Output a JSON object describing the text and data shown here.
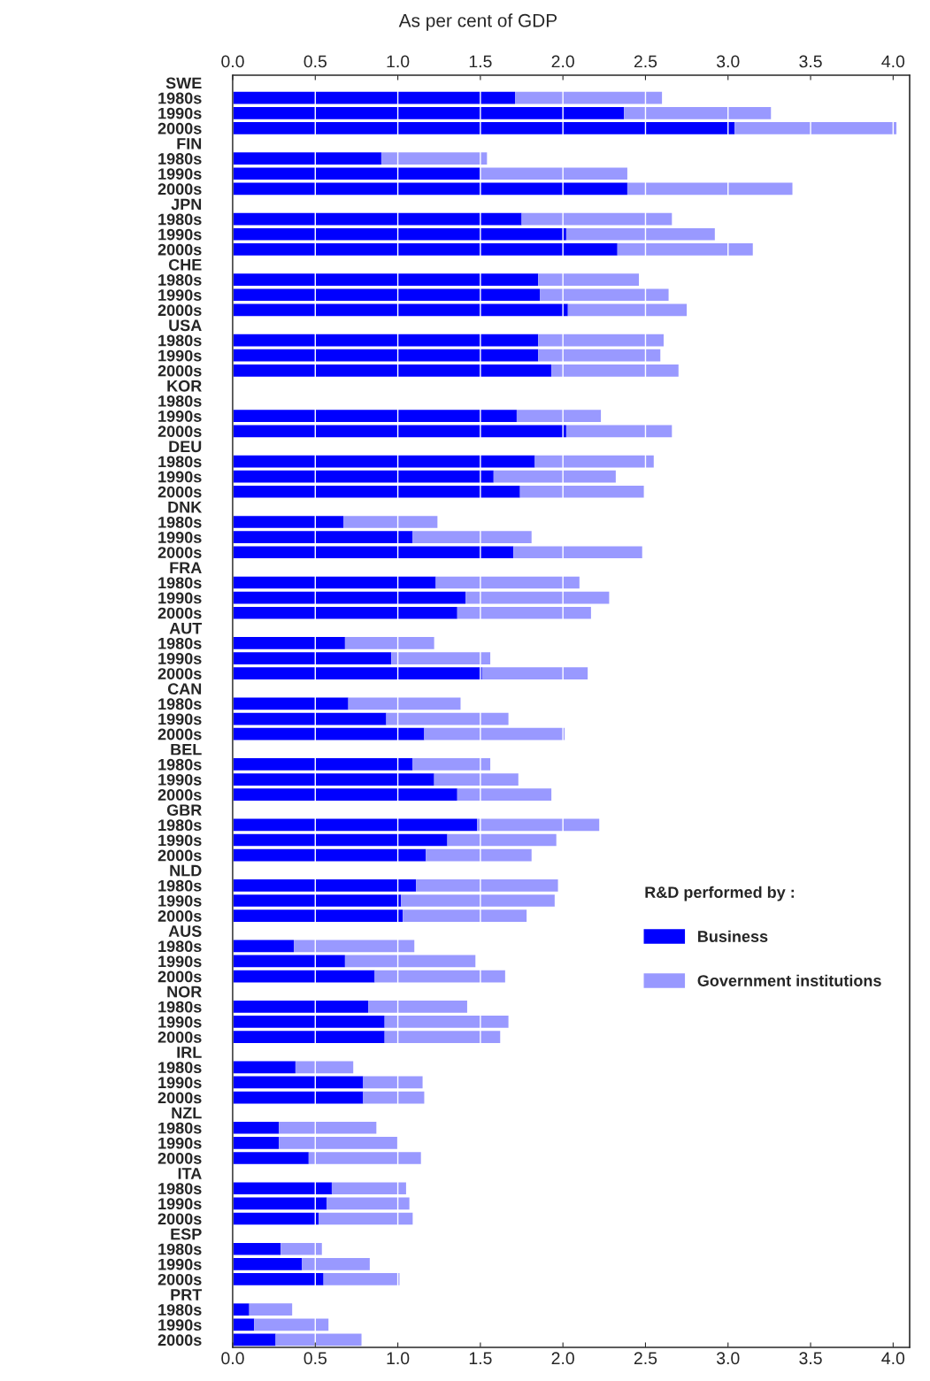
{
  "chart_data": {
    "type": "bar",
    "orientation": "horizontal",
    "stacked": true,
    "title": "As per cent of GDP",
    "categories": [
      "SWE",
      "1980s",
      "1990s",
      "2000s",
      "FIN",
      "1980s",
      "1990s",
      "2000s",
      "JPN",
      "1980s",
      "1990s",
      "2000s",
      "CHE",
      "1980s",
      "1990s",
      "2000s",
      "USA",
      "1980s",
      "1990s",
      "2000s",
      "KOR",
      "1980s",
      "1990s",
      "2000s",
      "DEU",
      "1980s",
      "1990s",
      "2000s",
      "DNK",
      "1980s",
      "1990s",
      "2000s",
      "FRA",
      "1980s",
      "1990s",
      "2000s",
      "AUT",
      "1980s",
      "1990s",
      "2000s",
      "CAN",
      "1980s",
      "1990s",
      "2000s",
      "BEL",
      "1980s",
      "1990s",
      "2000s",
      "GBR",
      "1980s",
      "1990s",
      "2000s",
      "NLD",
      "1980s",
      "1990s",
      "2000s",
      "AUS",
      "1980s",
      "1990s",
      "2000s",
      "NOR",
      "1980s",
      "1990s",
      "2000s",
      "IRL",
      "1980s",
      "1990s",
      "2000s",
      "NZL",
      "1980s",
      "1990s",
      "2000s",
      "ITA",
      "1980s",
      "1990s",
      "2000s",
      "ESP",
      "1980s",
      "1990s",
      "2000s",
      "PRT",
      "1980s",
      "1990s",
      "2000s"
    ],
    "series": [
      {
        "name": "Business",
        "color": "#0000ff",
        "values": [
          null,
          1.71,
          2.37,
          3.04,
          null,
          0.9,
          1.5,
          2.39,
          null,
          1.75,
          2.02,
          2.33,
          null,
          1.85,
          1.86,
          2.03,
          null,
          1.85,
          1.85,
          1.93,
          null,
          null,
          1.72,
          2.02,
          null,
          1.83,
          1.58,
          1.74,
          null,
          0.67,
          1.09,
          1.7,
          null,
          1.23,
          1.41,
          1.36,
          null,
          0.68,
          0.96,
          1.51,
          null,
          0.7,
          0.93,
          1.16,
          null,
          1.09,
          1.22,
          1.36,
          null,
          1.48,
          1.3,
          1.17,
          null,
          1.11,
          1.02,
          1.03,
          null,
          0.37,
          0.68,
          0.86,
          null,
          0.82,
          0.92,
          0.92,
          null,
          0.38,
          0.79,
          0.79,
          null,
          0.28,
          0.28,
          0.46,
          null,
          0.6,
          0.57,
          0.52,
          null,
          0.29,
          0.42,
          0.55,
          null,
          0.1,
          0.13,
          0.26
        ]
      },
      {
        "name": "Government institutions",
        "color": "#9999ff",
        "values": [
          null,
          0.89,
          0.89,
          0.98,
          null,
          0.64,
          0.89,
          1.0,
          null,
          0.91,
          0.9,
          0.82,
          null,
          0.61,
          0.78,
          0.72,
          null,
          0.76,
          0.74,
          0.77,
          null,
          null,
          0.51,
          0.64,
          null,
          0.72,
          0.74,
          0.75,
          null,
          0.57,
          0.72,
          0.78,
          null,
          0.87,
          0.87,
          0.81,
          null,
          0.54,
          0.6,
          0.64,
          null,
          0.68,
          0.74,
          0.85,
          null,
          0.47,
          0.51,
          0.57,
          null,
          0.74,
          0.66,
          0.64,
          null,
          0.86,
          0.93,
          0.75,
          null,
          0.73,
          0.79,
          0.79,
          null,
          0.6,
          0.75,
          0.7,
          null,
          0.35,
          0.36,
          0.37,
          null,
          0.59,
          0.72,
          0.68,
          null,
          0.45,
          0.5,
          0.57,
          null,
          0.25,
          0.41,
          0.46,
          null,
          0.26,
          0.45,
          0.52
        ]
      }
    ],
    "xlim": [
      0,
      4.1
    ],
    "xticks": [
      {
        "value": 0,
        "label": "0.0"
      },
      {
        "value": 0.5,
        "label": "0.5"
      },
      {
        "value": 1,
        "label": "1.0"
      },
      {
        "value": 1.5,
        "label": "1.5"
      },
      {
        "value": 2,
        "label": "2.0"
      },
      {
        "value": 2.5,
        "label": "2.5"
      },
      {
        "value": 3,
        "label": "3.0"
      },
      {
        "value": 3.5,
        "label": "3.5"
      },
      {
        "value": 4,
        "label": "4.0"
      }
    ],
    "x2lim": [
      0,
      4.1
    ],
    "x2ticks": [
      {
        "value": 0,
        "label": "0.0"
      },
      {
        "value": 0.5,
        "label": "0.5"
      },
      {
        "value": 1,
        "label": "1.0"
      },
      {
        "value": 1.5,
        "label": "1.5"
      },
      {
        "value": 2,
        "label": "2.0"
      },
      {
        "value": 2.5,
        "label": "2.5"
      },
      {
        "value": 3,
        "label": "3.0"
      },
      {
        "value": 3.5,
        "label": "3.5"
      },
      {
        "value": 4,
        "label": "4.0"
      }
    ],
    "grid": "x",
    "legend": "bottom right",
    "legend_title": "R&D performed by :"
  }
}
